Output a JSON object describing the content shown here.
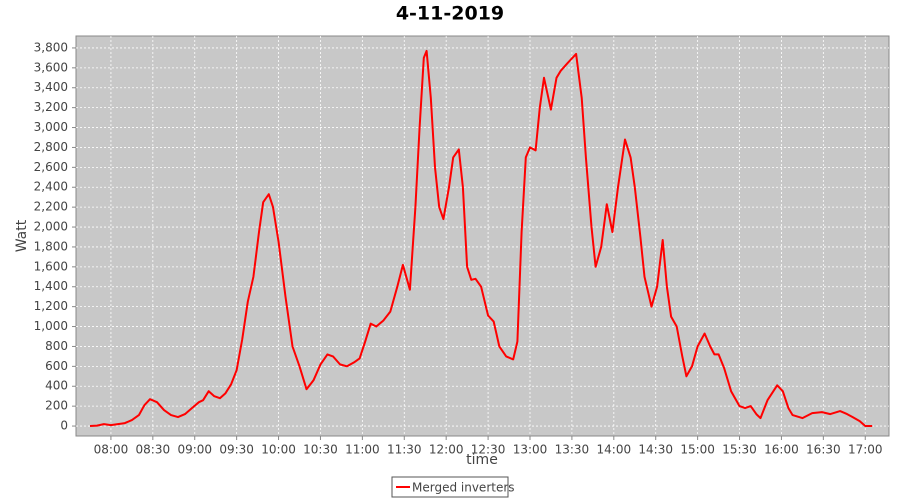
{
  "chart_data": {
    "type": "line",
    "title": "4-11-2019",
    "x_label": "time",
    "y_label": "Watt",
    "x": [
      "07:45",
      "07:50",
      "07:55",
      "08:00",
      "08:05",
      "08:10",
      "08:15",
      "08:20",
      "08:24",
      "08:28",
      "08:33",
      "08:38",
      "08:43",
      "08:48",
      "08:53",
      "08:58",
      "09:03",
      "09:06",
      "09:10",
      "09:14",
      "09:18",
      "09:22",
      "09:26",
      "09:30",
      "09:34",
      "09:38",
      "09:42",
      "09:46",
      "09:49",
      "09:53",
      "09:56",
      "10:00",
      "10:05",
      "10:10",
      "10:15",
      "10:20",
      "10:25",
      "10:30",
      "10:35",
      "10:39",
      "10:44",
      "10:49",
      "10:54",
      "10:58",
      "11:02",
      "11:06",
      "11:10",
      "11:15",
      "11:20",
      "11:25",
      "11:29",
      "11:34",
      "11:38",
      "11:41",
      "11:44",
      "11:46",
      "11:49",
      "11:52",
      "11:55",
      "11:58",
      "12:02",
      "12:05",
      "12:09",
      "12:12",
      "12:15",
      "12:18",
      "12:21",
      "12:25",
      "12:30",
      "12:34",
      "12:38",
      "12:43",
      "12:48",
      "12:51",
      "12:54",
      "12:57",
      "13:00",
      "13:04",
      "13:07",
      "13:10",
      "13:15",
      "13:19",
      "13:22",
      "13:27",
      "13:33",
      "13:37",
      "13:40",
      "13:44",
      "13:47",
      "13:51",
      "13:55",
      "13:59",
      "14:03",
      "14:08",
      "14:12",
      "14:15",
      "14:19",
      "14:22",
      "14:27",
      "14:31",
      "14:35",
      "14:38",
      "14:41",
      "14:45",
      "14:49",
      "14:52",
      "14:56",
      "15:00",
      "15:05",
      "15:09",
      "15:12",
      "15:15",
      "15:19",
      "15:24",
      "15:30",
      "15:34",
      "15:38",
      "15:42",
      "15:45",
      "15:50",
      "15:57",
      "16:01",
      "16:05",
      "16:08",
      "16:15",
      "16:22",
      "16:29",
      "16:35",
      "16:42",
      "16:47",
      "16:51",
      "16:56",
      "17:00",
      "17:05"
    ],
    "series": [
      {
        "name": "Merged inverters",
        "color": "#ff0000",
        "values": [
          0,
          5,
          20,
          10,
          20,
          30,
          60,
          110,
          210,
          270,
          240,
          160,
          110,
          90,
          120,
          180,
          240,
          260,
          350,
          300,
          280,
          330,
          420,
          560,
          870,
          1250,
          1500,
          1950,
          2250,
          2330,
          2200,
          1850,
          1300,
          800,
          600,
          370,
          460,
          620,
          720,
          700,
          620,
          600,
          640,
          680,
          850,
          1030,
          1000,
          1060,
          1150,
          1400,
          1620,
          1370,
          2200,
          3000,
          3700,
          3770,
          3300,
          2600,
          2200,
          2080,
          2400,
          2700,
          2780,
          2400,
          1600,
          1470,
          1480,
          1400,
          1110,
          1050,
          800,
          700,
          670,
          850,
          1950,
          2700,
          2800,
          2770,
          3200,
          3500,
          3180,
          3500,
          3570,
          3650,
          3740,
          3300,
          2700,
          2000,
          1600,
          1800,
          2230,
          1950,
          2400,
          2880,
          2700,
          2400,
          1900,
          1500,
          1200,
          1400,
          1870,
          1400,
          1100,
          1000,
          700,
          500,
          600,
          800,
          930,
          800,
          720,
          720,
          580,
          350,
          200,
          180,
          200,
          120,
          80,
          260,
          410,
          350,
          180,
          110,
          80,
          130,
          140,
          120,
          150,
          120,
          90,
          50,
          0,
          0
        ]
      }
    ],
    "xlim": [
      "07:35",
      "17:17"
    ],
    "xticks": [
      "08:00",
      "08:30",
      "09:00",
      "09:30",
      "10:00",
      "10:30",
      "11:00",
      "11:30",
      "12:00",
      "12:30",
      "13:00",
      "13:30",
      "14:00",
      "14:30",
      "15:00",
      "15:30",
      "16:00",
      "16:30",
      "17:00"
    ],
    "ylim": [
      -100,
      3920
    ],
    "yticks": [
      0,
      200,
      400,
      600,
      800,
      {
        "value": 1000,
        "label": "1,000"
      },
      {
        "value": 1200,
        "label": "1,200"
      },
      {
        "value": 1400,
        "label": "1,400"
      },
      {
        "value": 1600,
        "label": "1,600"
      },
      {
        "value": 1800,
        "label": "1,800"
      },
      {
        "value": 2000,
        "label": "2,000"
      },
      {
        "value": 2200,
        "label": "2,200"
      },
      {
        "value": 2400,
        "label": "2,400"
      },
      {
        "value": 2600,
        "label": "2,600"
      },
      {
        "value": 2800,
        "label": "2,800"
      },
      {
        "value": 3000,
        "label": "3,000"
      },
      {
        "value": 3200,
        "label": "3,200"
      },
      {
        "value": 3400,
        "label": "3,400"
      },
      {
        "value": 3600,
        "label": "3,600"
      },
      {
        "value": 3800,
        "label": "3,800"
      }
    ],
    "grid": true,
    "legend": "bottom"
  }
}
